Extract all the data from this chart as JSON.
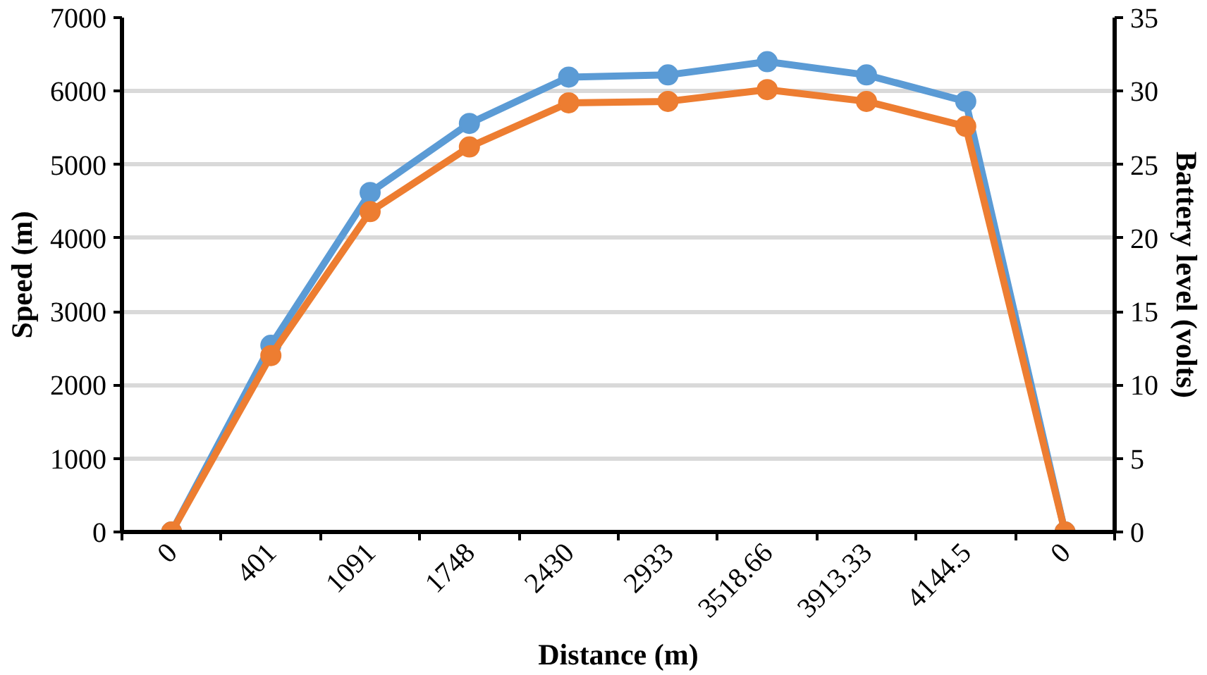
{
  "chart_data": {
    "type": "line",
    "xlabel": "Distance (m)",
    "ylabel": "Speed (m)",
    "y2label": "Battery level (volts)",
    "categories": [
      "0",
      "401",
      "1091",
      "1748",
      "2430",
      "2933",
      "3518.66",
      "3913.33",
      "4144.5",
      "0"
    ],
    "series": [
      {
        "color": "#5b9bd5",
        "values": [
          0,
          2540,
          4620,
          5560,
          6190,
          6220,
          6400,
          6220,
          5860,
          0
        ]
      },
      {
        "color": "#ed7d31",
        "axis": "y2",
        "values": [
          0,
          12.0,
          21.8,
          26.2,
          29.2,
          29.3,
          30.1,
          29.3,
          27.6,
          0
        ]
      }
    ],
    "ylim": [
      0,
      7000
    ],
    "yticks": [
      0,
      1000,
      2000,
      3000,
      4000,
      5000,
      6000,
      7000
    ],
    "y2lim": [
      0,
      35
    ],
    "y2ticks": [
      0,
      5,
      10,
      15,
      20,
      25,
      30,
      35
    ],
    "grid": "y",
    "marker": "circle",
    "line_style": "solid"
  }
}
